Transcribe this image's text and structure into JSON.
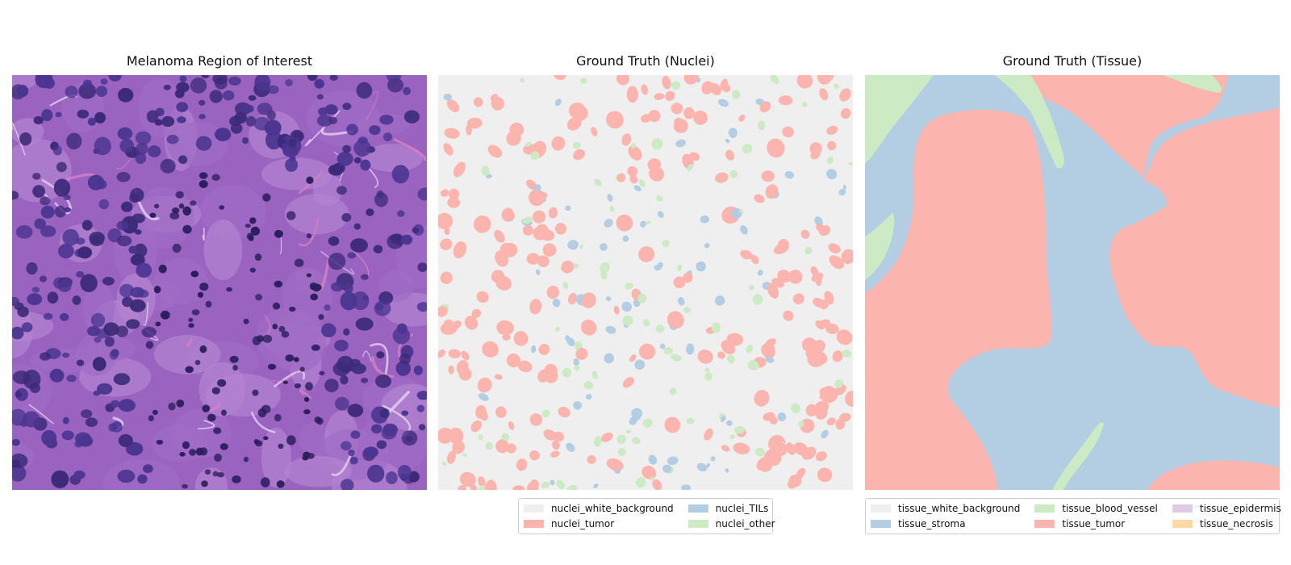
{
  "panels": [
    {
      "title": "Melanoma Region of Interest"
    },
    {
      "title": "Ground Truth (Nuclei)"
    },
    {
      "title": "Ground Truth (Tissue)"
    }
  ],
  "nuclei_legend": [
    {
      "label": "nuclei_white_background",
      "color": "#efefef"
    },
    {
      "label": "nuclei_TILs",
      "color": "#b3cde3"
    },
    {
      "label": "nuclei_tumor",
      "color": "#fbb4ae"
    },
    {
      "label": "nuclei_other",
      "color": "#ccebc5"
    }
  ],
  "tissue_legend": [
    {
      "label": "tissue_white_background",
      "color": "#efefef"
    },
    {
      "label": "tissue_blood_vessel",
      "color": "#ccebc5"
    },
    {
      "label": "tissue_epidermis",
      "color": "#decbe4"
    },
    {
      "label": "tissue_stroma",
      "color": "#b3cde3"
    },
    {
      "label": "tissue_tumor",
      "color": "#fbb4ae"
    },
    {
      "label": "tissue_necrosis",
      "color": "#fed9a6"
    }
  ]
}
